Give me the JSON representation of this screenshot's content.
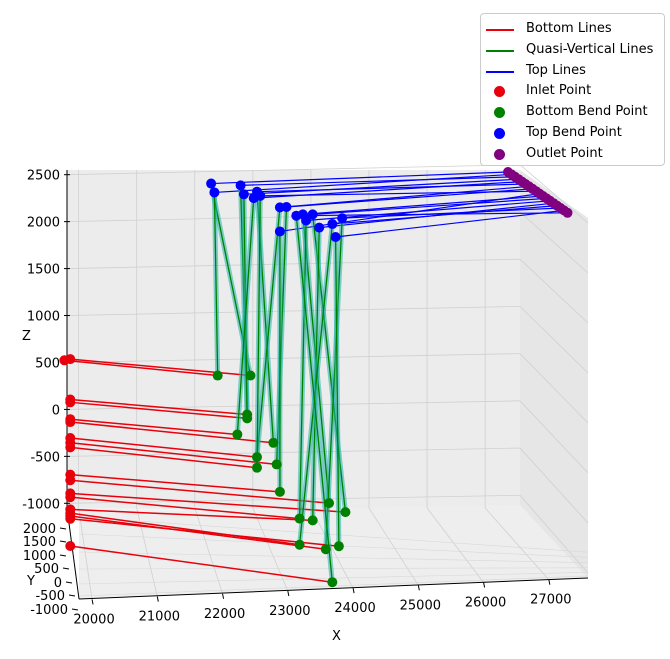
{
  "chart_data": {
    "type": "3d-line-scatter",
    "title": "",
    "xlabel": "X",
    "ylabel": "Y",
    "zlabel": "Z",
    "x_ticks": [
      "20000",
      "21000",
      "22000",
      "23000",
      "24000",
      "25000",
      "26000",
      "27000"
    ],
    "y_ticks": [
      "-1000",
      "-500",
      "0",
      "500",
      "1000",
      "1500",
      "2000"
    ],
    "z_ticks": [
      "-1000",
      "-500",
      "0",
      "500",
      "1000",
      "1500",
      "2000",
      "2500"
    ],
    "xlim": [
      19800,
      27600
    ],
    "zlim": [
      -1050,
      2550
    ],
    "legend_position": "top-right",
    "legend": [
      {
        "label": "Bottom Lines",
        "kind": "line",
        "color": "#e8000b"
      },
      {
        "label": "Quasi-Vertical Lines",
        "kind": "line",
        "color": "#008000"
      },
      {
        "label": "Top Lines",
        "kind": "line",
        "color": "#0000ff"
      },
      {
        "label": "Inlet Point",
        "kind": "marker",
        "color": "#e8000b"
      },
      {
        "label": "Bottom Bend Point",
        "kind": "marker",
        "color": "#008000"
      },
      {
        "label": "Top Bend Point",
        "kind": "marker",
        "color": "#0000ff"
      },
      {
        "label": "Outlet Point",
        "kind": "marker",
        "color": "#800080"
      }
    ],
    "colors": {
      "bottom": "#e8000b",
      "vertical": "#008000",
      "vertical_halo": "#20b2aa",
      "top": "#0000ff",
      "outlet": "#800080"
    },
    "paths": [
      {
        "inlet": [
          19850,
          540
        ],
        "bottom_bend": [
          22600,
          590
        ],
        "top_bend": [
          22000,
          2550
        ]
      },
      {
        "inlet": [
          19760,
          520
        ],
        "bottom_bend": [
          22100,
          550
        ],
        "top_bend": [
          22050,
          2460
        ]
      },
      {
        "inlet": [
          19850,
          110
        ],
        "bottom_bend": [
          22550,
          180
        ],
        "top_bend": [
          22450,
          2560
        ]
      },
      {
        "inlet": [
          19850,
          80
        ],
        "bottom_bend": [
          22550,
          140
        ],
        "top_bend": [
          22500,
          2470
        ]
      },
      {
        "inlet": [
          19850,
          -100
        ],
        "bottom_bend": [
          22400,
          -40
        ],
        "top_bend": [
          22650,
          2440
        ]
      },
      {
        "inlet": [
          19850,
          -130
        ],
        "bottom_bend": [
          22950,
          -80
        ],
        "top_bend": [
          22700,
          2510
        ]
      },
      {
        "inlet": [
          19850,
          -300
        ],
        "bottom_bend": [
          22700,
          -250
        ],
        "top_bend": [
          23050,
          2370
        ]
      },
      {
        "inlet": [
          19850,
          -350
        ],
        "bottom_bend": [
          23000,
          -300
        ],
        "top_bend": [
          23150,
          2380
        ]
      },
      {
        "inlet": [
          19850,
          -400
        ],
        "bottom_bend": [
          22700,
          -360
        ],
        "top_bend": [
          22750,
          2470
        ]
      },
      {
        "inlet": [
          19850,
          -690
        ],
        "bottom_bend": [
          23050,
          -580
        ],
        "top_bend": [
          23050,
          2120
        ]
      },
      {
        "inlet": [
          19850,
          -750
        ],
        "bottom_bend": [
          23800,
          -630
        ],
        "top_bend": [
          23400,
          2320
        ]
      },
      {
        "inlet": [
          19850,
          -890
        ],
        "bottom_bend": [
          24050,
          -700
        ],
        "top_bend": [
          23550,
          2330
        ]
      },
      {
        "inlet": [
          19850,
          -930
        ],
        "bottom_bend": [
          23350,
          -830
        ],
        "top_bend": [
          23450,
          2260
        ]
      },
      {
        "inlet": [
          19850,
          -1060
        ],
        "bottom_bend": [
          23550,
          -830
        ],
        "top_bend": [
          23650,
          2200
        ]
      },
      {
        "inlet": [
          19850,
          -1100
        ],
        "bottom_bend": [
          23350,
          -1100
        ],
        "top_bend": [
          23850,
          2250
        ]
      },
      {
        "inlet": [
          19850,
          -1130
        ],
        "bottom_bend": [
          23750,
          -1110
        ],
        "top_bend": [
          24000,
          2320
        ]
      },
      {
        "inlet": [
          19850,
          -1160
        ],
        "bottom_bend": [
          23950,
          -1060
        ],
        "top_bend": [
          23900,
          2120
        ]
      },
      {
        "inlet": [
          19850,
          -1450
        ],
        "bottom_bend": [
          23850,
          -1440
        ],
        "top_bend": [
          23300,
          2300
        ]
      }
    ]
  }
}
